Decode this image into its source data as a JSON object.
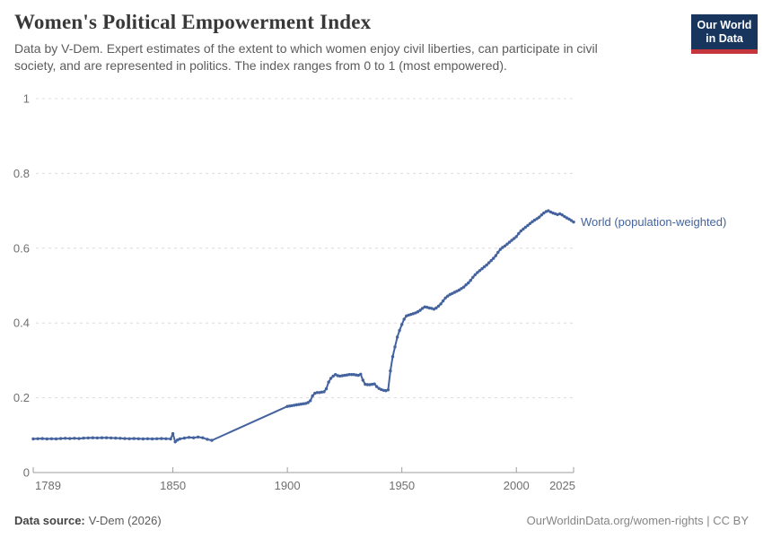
{
  "header": {
    "title": "Women's Political Empowerment Index",
    "subtitle": "Data by V-Dem. Expert estimates of the extent to which women enjoy civil liberties, can participate in civil society, and are represented in politics. The index ranges from 0 to 1 (most empowered).",
    "logo": {
      "line1": "Our World",
      "line2": "in Data",
      "bg_color": "#18365d",
      "bar_color": "#c5353c"
    }
  },
  "footer": {
    "source_label": "Data source:",
    "source_value": "V-Dem (2026)",
    "attribution": "OurWorldinData.org/women-rights | CC BY"
  },
  "chart_data": {
    "type": "line",
    "title": "Women's Political Empowerment Index",
    "xlabel": "",
    "ylabel": "",
    "xlim": [
      1789,
      2025
    ],
    "ylim": [
      0,
      1
    ],
    "x_ticks": [
      1789,
      1850,
      1900,
      1950,
      2000,
      2025
    ],
    "x_tick_labels": [
      "1789",
      "1850",
      "1900",
      "1950",
      "2000",
      "2025"
    ],
    "y_ticks": [
      0,
      0.2,
      0.4,
      0.6,
      0.8,
      1
    ],
    "y_tick_labels": [
      "0",
      "0.2",
      "0.4",
      "0.6",
      "0.8",
      "1"
    ],
    "grid": "horizontal-dashed",
    "legend_position": "end-of-line",
    "interpolated_gap": [
      1867,
      1900
    ],
    "series": [
      {
        "name": "World (population-weighted)",
        "color": "#44639e",
        "points": [
          [
            1789,
            0.09
          ],
          [
            1791,
            0.0905
          ],
          [
            1793,
            0.091
          ],
          [
            1795,
            0.09
          ],
          [
            1797,
            0.0905
          ],
          [
            1799,
            0.09
          ],
          [
            1801,
            0.091
          ],
          [
            1803,
            0.0915
          ],
          [
            1805,
            0.091
          ],
          [
            1807,
            0.0915
          ],
          [
            1809,
            0.091
          ],
          [
            1811,
            0.092
          ],
          [
            1813,
            0.0925
          ],
          [
            1815,
            0.093
          ],
          [
            1817,
            0.0925
          ],
          [
            1819,
            0.093
          ],
          [
            1821,
            0.093
          ],
          [
            1823,
            0.0925
          ],
          [
            1825,
            0.092
          ],
          [
            1827,
            0.0915
          ],
          [
            1829,
            0.091
          ],
          [
            1831,
            0.0905
          ],
          [
            1833,
            0.091
          ],
          [
            1835,
            0.0905
          ],
          [
            1837,
            0.09
          ],
          [
            1839,
            0.0905
          ],
          [
            1841,
            0.09
          ],
          [
            1843,
            0.0905
          ],
          [
            1845,
            0.091
          ],
          [
            1847,
            0.0905
          ],
          [
            1849,
            0.09
          ],
          [
            1850,
            0.104
          ],
          [
            1851,
            0.082
          ],
          [
            1852,
            0.087
          ],
          [
            1853,
            0.09
          ],
          [
            1855,
            0.092
          ],
          [
            1857,
            0.094
          ],
          [
            1859,
            0.093
          ],
          [
            1861,
            0.095
          ],
          [
            1863,
            0.093
          ],
          [
            1865,
            0.089
          ],
          [
            1867,
            0.086
          ],
          [
            1900,
            0.177
          ],
          [
            1901,
            0.178
          ],
          [
            1902,
            0.179
          ],
          [
            1903,
            0.18
          ],
          [
            1904,
            0.181
          ],
          [
            1905,
            0.182
          ],
          [
            1906,
            0.183
          ],
          [
            1907,
            0.184
          ],
          [
            1908,
            0.185
          ],
          [
            1909,
            0.187
          ],
          [
            1910,
            0.192
          ],
          [
            1911,
            0.205
          ],
          [
            1912,
            0.212
          ],
          [
            1913,
            0.214
          ],
          [
            1914,
            0.214
          ],
          [
            1915,
            0.215
          ],
          [
            1916,
            0.216
          ],
          [
            1917,
            0.224
          ],
          [
            1918,
            0.242
          ],
          [
            1919,
            0.252
          ],
          [
            1920,
            0.258
          ],
          [
            1921,
            0.262
          ],
          [
            1922,
            0.259
          ],
          [
            1923,
            0.258
          ],
          [
            1924,
            0.259
          ],
          [
            1925,
            0.26
          ],
          [
            1926,
            0.261
          ],
          [
            1927,
            0.262
          ],
          [
            1928,
            0.262
          ],
          [
            1929,
            0.262
          ],
          [
            1930,
            0.261
          ],
          [
            1931,
            0.26
          ],
          [
            1932,
            0.263
          ],
          [
            1933,
            0.247
          ],
          [
            1934,
            0.236
          ],
          [
            1935,
            0.235
          ],
          [
            1936,
            0.235
          ],
          [
            1937,
            0.236
          ],
          [
            1938,
            0.237
          ],
          [
            1939,
            0.23
          ],
          [
            1940,
            0.225
          ],
          [
            1941,
            0.222
          ],
          [
            1942,
            0.22
          ],
          [
            1943,
            0.219
          ],
          [
            1944,
            0.221
          ],
          [
            1945,
            0.272
          ],
          [
            1946,
            0.31
          ],
          [
            1947,
            0.336
          ],
          [
            1948,
            0.362
          ],
          [
            1949,
            0.38
          ],
          [
            1950,
            0.396
          ],
          [
            1951,
            0.41
          ],
          [
            1952,
            0.419
          ],
          [
            1953,
            0.421
          ],
          [
            1954,
            0.423
          ],
          [
            1955,
            0.425
          ],
          [
            1956,
            0.427
          ],
          [
            1957,
            0.43
          ],
          [
            1958,
            0.434
          ],
          [
            1959,
            0.439
          ],
          [
            1960,
            0.443
          ],
          [
            1961,
            0.442
          ],
          [
            1962,
            0.44
          ],
          [
            1963,
            0.439
          ],
          [
            1964,
            0.437
          ],
          [
            1965,
            0.44
          ],
          [
            1966,
            0.445
          ],
          [
            1967,
            0.451
          ],
          [
            1968,
            0.459
          ],
          [
            1969,
            0.467
          ],
          [
            1970,
            0.472
          ],
          [
            1971,
            0.476
          ],
          [
            1972,
            0.479
          ],
          [
            1973,
            0.482
          ],
          [
            1974,
            0.485
          ],
          [
            1975,
            0.488
          ],
          [
            1976,
            0.492
          ],
          [
            1977,
            0.496
          ],
          [
            1978,
            0.502
          ],
          [
            1979,
            0.507
          ],
          [
            1980,
            0.514
          ],
          [
            1981,
            0.522
          ],
          [
            1982,
            0.529
          ],
          [
            1983,
            0.535
          ],
          [
            1984,
            0.54
          ],
          [
            1985,
            0.545
          ],
          [
            1986,
            0.55
          ],
          [
            1987,
            0.555
          ],
          [
            1988,
            0.561
          ],
          [
            1989,
            0.567
          ],
          [
            1990,
            0.573
          ],
          [
            1991,
            0.58
          ],
          [
            1992,
            0.589
          ],
          [
            1993,
            0.597
          ],
          [
            1994,
            0.602
          ],
          [
            1995,
            0.606
          ],
          [
            1996,
            0.611
          ],
          [
            1997,
            0.616
          ],
          [
            1998,
            0.621
          ],
          [
            1999,
            0.626
          ],
          [
            2000,
            0.631
          ],
          [
            2001,
            0.639
          ],
          [
            2002,
            0.646
          ],
          [
            2003,
            0.651
          ],
          [
            2004,
            0.656
          ],
          [
            2005,
            0.661
          ],
          [
            2006,
            0.666
          ],
          [
            2007,
            0.671
          ],
          [
            2008,
            0.675
          ],
          [
            2009,
            0.679
          ],
          [
            2010,
            0.683
          ],
          [
            2011,
            0.689
          ],
          [
            2012,
            0.694
          ],
          [
            2013,
            0.698
          ],
          [
            2014,
            0.7
          ],
          [
            2015,
            0.697
          ],
          [
            2016,
            0.694
          ],
          [
            2017,
            0.692
          ],
          [
            2018,
            0.69
          ],
          [
            2019,
            0.692
          ],
          [
            2020,
            0.689
          ],
          [
            2021,
            0.685
          ],
          [
            2022,
            0.681
          ],
          [
            2023,
            0.678
          ],
          [
            2024,
            0.674
          ],
          [
            2025,
            0.67
          ]
        ]
      }
    ]
  }
}
